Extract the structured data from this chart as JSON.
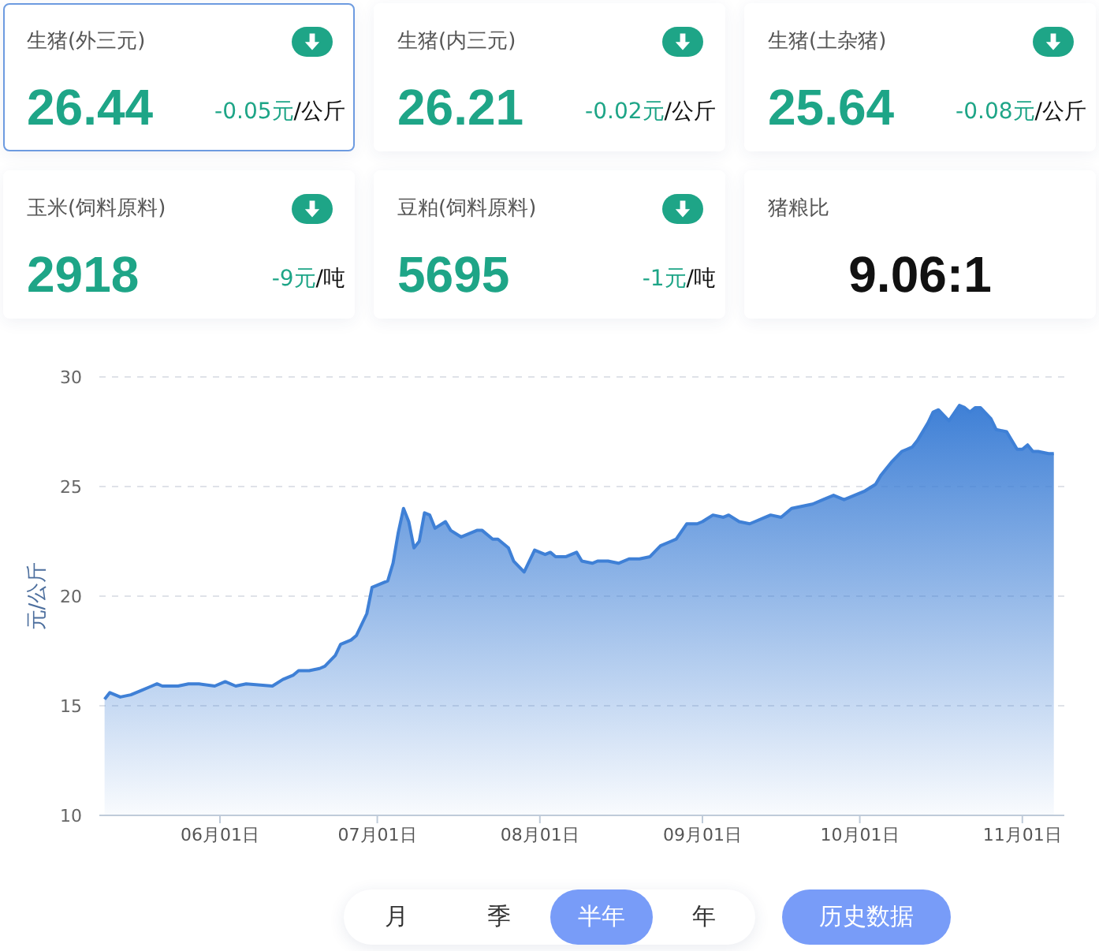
{
  "chart_data": [
    {
      "type": "other",
      "title": "生猪(外三元)",
      "annotations": [
        "26.44",
        "-0.05元",
        "/公斤"
      ]
    },
    {
      "type": "other",
      "title": "生猪(内三元)",
      "annotations": [
        "26.21",
        "-0.02元",
        "/公斤"
      ]
    },
    {
      "type": "other",
      "title": "生猪(土杂猪)",
      "annotations": [
        "25.64",
        "-0.08元",
        "/公斤"
      ]
    },
    {
      "type": "other",
      "title": "玉米(饲料原料)",
      "annotations": [
        "2918",
        "-9元",
        "/吨"
      ]
    },
    {
      "type": "other",
      "title": "豆粕(饲料原料)",
      "annotations": [
        "5695",
        "-1元",
        "/吨"
      ]
    },
    {
      "type": "other",
      "title": "猪粮比",
      "annotations": [
        "9.06:1"
      ]
    },
    {
      "type": "area",
      "ylabel": "元/公斤",
      "x": [
        "--05-10",
        "--05-11",
        "--05-13",
        "--05-15",
        "--05-17",
        "--05-19",
        "--05-20",
        "--05-21",
        "--05-24",
        "--05-26",
        "--05-28",
        "--05-31",
        "--06-02",
        "--06-04",
        "--06-06",
        "--06-11",
        "--06-13",
        "--06-15",
        "--06-16",
        "--06-18",
        "--06-20",
        "--06-21",
        "--06-23",
        "--06-24",
        "--06-26",
        "--06-27",
        "--06-29",
        "--06-30",
        "--07-01",
        "--07-03",
        "--07-04",
        "--07-05",
        "--07-06",
        "--07-07",
        "--07-08",
        "--07-09",
        "--07-10",
        "--07-11",
        "--07-12",
        "--07-14",
        "--07-15",
        "--07-17",
        "--07-18",
        "--07-20",
        "--07-21",
        "--07-23",
        "--07-24",
        "--07-26",
        "--07-27",
        "--07-29",
        "--07-31",
        "--08-02",
        "--08-03",
        "--08-04",
        "--08-06",
        "--08-08",
        "--08-09",
        "--08-11",
        "--08-12",
        "--08-14",
        "--08-16",
        "--08-18",
        "--08-20",
        "--08-22",
        "--08-24",
        "--08-26",
        "--08-27",
        "--08-29",
        "--08-31",
        "--09-01",
        "--09-03",
        "--09-05",
        "--09-06",
        "--09-08",
        "--09-10",
        "--09-11",
        "--09-13",
        "--09-14",
        "--09-16",
        "--09-18",
        "--09-20",
        "--09-22",
        "--09-24",
        "--09-26",
        "--09-27",
        "--09-28",
        "--09-30",
        "--10-02",
        "--10-04",
        "--10-05",
        "--10-07",
        "--10-09",
        "--10-10",
        "--10-11",
        "--10-12",
        "--10-14",
        "--10-15",
        "--10-16",
        "--10-18",
        "--10-20",
        "--10-21",
        "--10-22",
        "--10-23",
        "--10-24",
        "--10-26",
        "--10-27",
        "--10-29",
        "--10-31",
        "--11-01",
        "--11-02",
        "--11-03",
        "--11-04",
        "--11-06",
        "--11-07"
      ],
      "values": [
        15.3,
        15.6,
        15.4,
        15.5,
        15.7,
        15.9,
        16.0,
        15.9,
        15.9,
        16.0,
        16.0,
        15.9,
        16.1,
        15.9,
        16.0,
        15.9,
        16.2,
        16.4,
        16.6,
        16.6,
        16.7,
        16.8,
        17.3,
        17.8,
        18.0,
        18.2,
        19.2,
        20.4,
        20.5,
        20.7,
        21.5,
        22.9,
        24.0,
        23.4,
        22.2,
        22.5,
        23.8,
        23.7,
        23.1,
        23.4,
        23.0,
        22.7,
        22.8,
        23.0,
        23.0,
        22.6,
        22.6,
        22.2,
        21.6,
        21.1,
        22.1,
        21.9,
        22.0,
        21.8,
        21.8,
        22.0,
        21.6,
        21.5,
        21.6,
        21.6,
        21.5,
        21.7,
        21.7,
        21.8,
        22.3,
        22.5,
        22.6,
        23.3,
        23.3,
        23.4,
        23.7,
        23.6,
        23.7,
        23.4,
        23.3,
        23.4,
        23.6,
        23.7,
        23.6,
        24.0,
        24.1,
        24.2,
        24.4,
        24.6,
        24.5,
        24.4,
        24.6,
        24.8,
        25.1,
        25.5,
        26.1,
        26.6,
        26.7,
        26.8,
        27.1,
        27.9,
        28.4,
        28.5,
        28.0,
        28.7,
        28.6,
        28.4,
        28.6,
        28.6,
        28.1,
        27.6,
        27.5,
        26.7,
        26.7,
        26.9,
        26.6,
        26.6,
        26.5,
        26.5
      ],
      "color": "#3f80d6",
      "xlim": [
        "--05-09",
        "--11-09"
      ],
      "xticks": [
        {
          "value": "--06-01",
          "label": "06月01日"
        },
        {
          "value": "--07-01",
          "label": "07月01日"
        },
        {
          "value": "--08-01",
          "label": "08月01日"
        },
        {
          "value": "--09-01",
          "label": "09月01日"
        },
        {
          "value": "--10-01",
          "label": "10月01日"
        },
        {
          "value": "--11-01",
          "label": "11月01日"
        }
      ],
      "ylim": [
        10,
        30
      ],
      "yticks": [
        10,
        15,
        20,
        25,
        30
      ],
      "grid": "y",
      "marker": "none",
      "annotations": [
        "月",
        "季",
        "半年",
        "年",
        "历史数据"
      ]
    }
  ]
}
